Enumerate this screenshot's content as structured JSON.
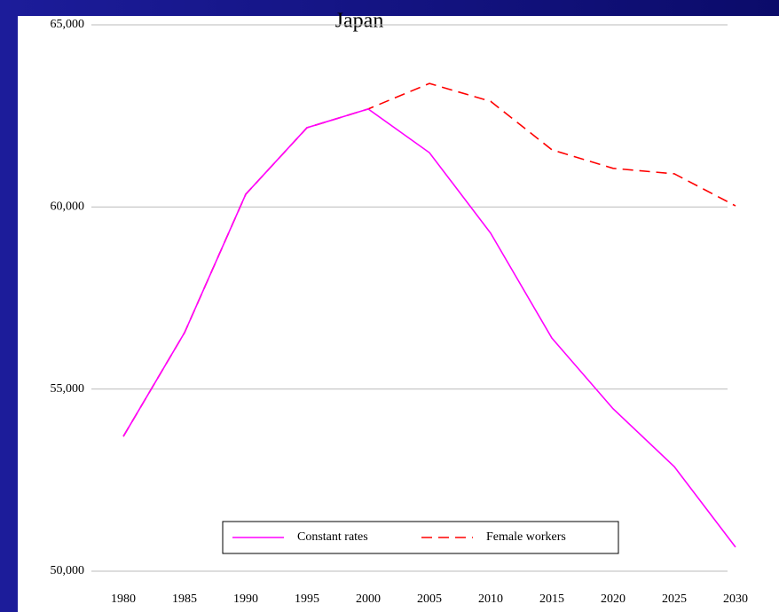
{
  "chart_data": {
    "type": "line",
    "title": "Japan",
    "categories": [
      "1980",
      "1985",
      "1990",
      "1995",
      "2000",
      "2005",
      "2010",
      "2015",
      "2020",
      "2025",
      "2030"
    ],
    "series": [
      {
        "name": "Constant rates",
        "color": "#ff00ff",
        "dash": false,
        "values": [
          53700,
          56550,
          60350,
          62175,
          62690,
          61490,
          59280,
          56400,
          54460,
          52870,
          50660
        ]
      },
      {
        "name": "Female workers",
        "color": "#ff0000",
        "dash": true,
        "values": [
          53700,
          56550,
          60350,
          62175,
          62690,
          63390,
          62900,
          61570,
          61060,
          60910,
          60030
        ]
      }
    ],
    "ylim": [
      50000,
      65000
    ],
    "yticks": [
      {
        "value": 50000,
        "label": "50,000"
      },
      {
        "value": 55000,
        "label": "55,000"
      },
      {
        "value": 60000,
        "label": "60,000"
      },
      {
        "value": 65000,
        "label": "65,000"
      }
    ],
    "grid": true,
    "legend": "bottom"
  }
}
